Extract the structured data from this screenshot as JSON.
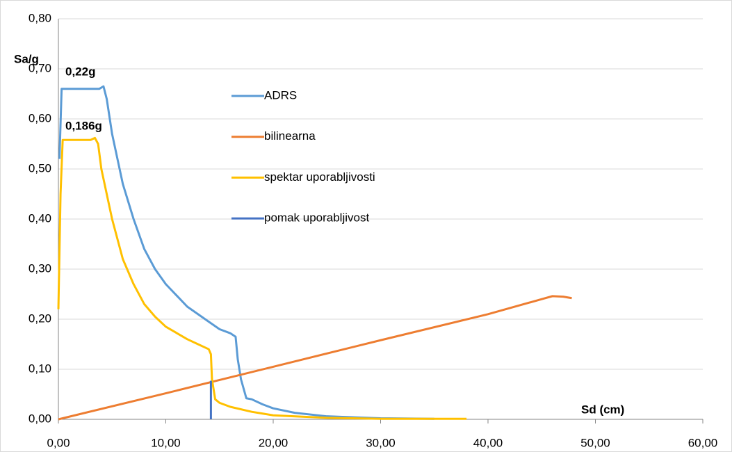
{
  "chart_data": {
    "type": "line",
    "y_axis_label": "Sa/g",
    "x_axis_label": "Sd  (cm)",
    "annotations": [
      "0,22g",
      "0,186g"
    ],
    "xlim": [
      0,
      60
    ],
    "ylim": [
      0,
      0.8
    ],
    "xticks": [
      {
        "value": 0,
        "label": "0,00"
      },
      {
        "value": 10,
        "label": "10,00"
      },
      {
        "value": 20,
        "label": "20,00"
      },
      {
        "value": 30,
        "label": "30,00"
      },
      {
        "value": 40,
        "label": "40,00"
      },
      {
        "value": 50,
        "label": "50,00"
      },
      {
        "value": 60,
        "label": "60,00"
      }
    ],
    "yticks": [
      {
        "value": 0,
        "label": "0,00"
      },
      {
        "value": 0.1,
        "label": "0,10"
      },
      {
        "value": 0.2,
        "label": "0,20"
      },
      {
        "value": 0.3,
        "label": "0,30"
      },
      {
        "value": 0.4,
        "label": "0,40"
      },
      {
        "value": 0.5,
        "label": "0,50"
      },
      {
        "value": 0.6,
        "label": "0,60"
      },
      {
        "value": 0.7,
        "label": "0,70"
      },
      {
        "value": 0.8,
        "label": "0,80"
      }
    ],
    "grid": true,
    "legend": "upper center",
    "series": [
      {
        "name": "ADRS",
        "color": "#5b9bd5",
        "x": [
          0.1,
          0.3,
          1,
          2,
          3,
          3.8,
          4.2,
          4.5,
          5,
          6,
          7,
          8,
          9,
          10,
          12,
          14,
          15,
          16,
          16.5,
          16.7,
          17,
          17.5,
          18,
          19,
          20,
          22,
          25,
          30,
          35
        ],
        "values": [
          0.52,
          0.66,
          0.66,
          0.66,
          0.66,
          0.66,
          0.665,
          0.64,
          0.57,
          0.47,
          0.4,
          0.34,
          0.3,
          0.27,
          0.225,
          0.195,
          0.18,
          0.172,
          0.165,
          0.12,
          0.08,
          0.042,
          0.04,
          0.03,
          0.022,
          0.013,
          0.006,
          0.002,
          0.001
        ]
      },
      {
        "name": "bilinearna",
        "color": "#ed7d31",
        "x": [
          0,
          10,
          20,
          30,
          40,
          45,
          46,
          47,
          47.8
        ],
        "values": [
          0,
          0.052,
          0.105,
          0.158,
          0.21,
          0.24,
          0.246,
          0.245,
          0.242
        ]
      },
      {
        "name": "spektar uporabljivosti",
        "color": "#ffc000",
        "x": [
          0,
          0.2,
          0.4,
          3,
          3.4,
          3.7,
          4,
          5,
          6,
          7,
          8,
          9,
          10,
          12,
          13,
          14,
          14.2,
          14.3,
          14.6,
          15,
          16,
          18,
          20,
          25,
          30,
          38
        ],
        "values": [
          0.22,
          0.45,
          0.558,
          0.558,
          0.562,
          0.55,
          0.5,
          0.4,
          0.32,
          0.27,
          0.23,
          0.205,
          0.185,
          0.16,
          0.15,
          0.14,
          0.13,
          0.08,
          0.04,
          0.033,
          0.025,
          0.015,
          0.008,
          0.003,
          0.001,
          0.001
        ]
      },
      {
        "name": "pomak uporabljivost",
        "color": "#4472c4",
        "x": [
          14.2,
          14.2
        ],
        "values": [
          0,
          0.077
        ]
      }
    ]
  }
}
